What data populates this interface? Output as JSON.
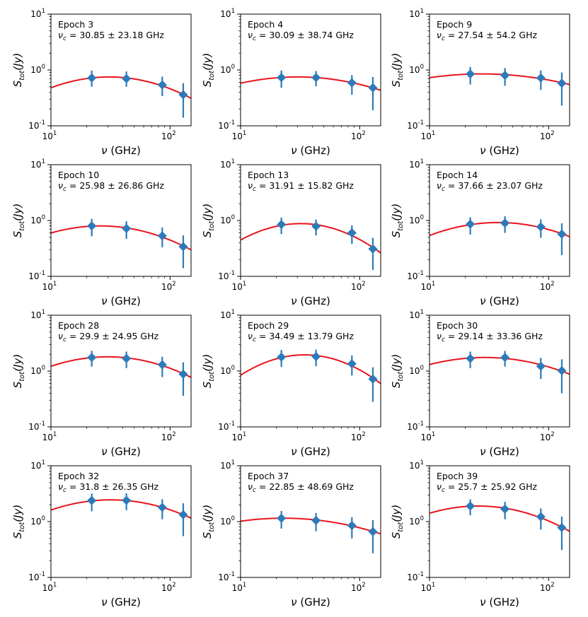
{
  "figure": {
    "xlabel_nu": "ν",
    "xlabel_unit": "(GHz)",
    "ylabel_S": "S",
    "ylabel_sub": "tot",
    "ylabel_unit": "(Jy)",
    "nu_symbol": "ν",
    "nu_sub": "c",
    "pm": "±",
    "unit": "GHz"
  },
  "styles": {
    "fit_color": "#e8141c",
    "point_color": "#2b7bba",
    "axis_color": "#000000"
  },
  "chart_data": [
    {
      "type": "scatter",
      "title": "Epoch 3",
      "nu_c": "30.85",
      "nu_c_err": "23.18",
      "x": [
        22,
        43,
        86,
        129
      ],
      "y": [
        0.72,
        0.7,
        0.54,
        0.36
      ],
      "yerr_low": [
        0.22,
        0.2,
        0.2,
        0.22
      ],
      "yerr_high": [
        0.26,
        0.24,
        0.22,
        0.22
      ],
      "peak": 0.75,
      "xlim": [
        10,
        150
      ],
      "ylim": [
        0.1,
        10
      ],
      "xscale": "log",
      "yscale": "log"
    },
    {
      "type": "scatter",
      "title": "Epoch 4",
      "nu_c": "30.09",
      "nu_c_err": "38.74",
      "x": [
        22,
        43,
        86,
        129
      ],
      "y": [
        0.73,
        0.73,
        0.59,
        0.48
      ],
      "yerr_low": [
        0.25,
        0.22,
        0.23,
        0.29
      ],
      "yerr_high": [
        0.25,
        0.23,
        0.22,
        0.27
      ],
      "peak": 0.75,
      "xlim": [
        10,
        150
      ],
      "ylim": [
        0.1,
        10
      ],
      "xscale": "log",
      "yscale": "log"
    },
    {
      "type": "scatter",
      "title": "Epoch 9",
      "nu_c": "27.54",
      "nu_c_err": "54.2",
      "x": [
        22,
        43,
        86,
        129
      ],
      "y": [
        0.85,
        0.8,
        0.72,
        0.58
      ],
      "yerr_low": [
        0.3,
        0.28,
        0.28,
        0.35
      ],
      "yerr_high": [
        0.28,
        0.28,
        0.26,
        0.32
      ],
      "peak": 0.85,
      "xlim": [
        10,
        150
      ],
      "ylim": [
        0.1,
        10
      ],
      "xscale": "log",
      "yscale": "log"
    },
    {
      "type": "scatter",
      "title": "Epoch 10",
      "nu_c": "25.98",
      "nu_c_err": "26.86",
      "x": [
        22,
        43,
        86,
        129
      ],
      "y": [
        0.8,
        0.72,
        0.53,
        0.34
      ],
      "yerr_low": [
        0.28,
        0.25,
        0.2,
        0.2
      ],
      "yerr_high": [
        0.27,
        0.25,
        0.22,
        0.2
      ],
      "peak": 0.8,
      "xlim": [
        10,
        150
      ],
      "ylim": [
        0.1,
        10
      ],
      "xscale": "log",
      "yscale": "log"
    },
    {
      "type": "scatter",
      "title": "Epoch 13",
      "nu_c": "31.91",
      "nu_c_err": "15.82",
      "x": [
        22,
        43,
        86,
        129
      ],
      "y": [
        0.85,
        0.79,
        0.6,
        0.31
      ],
      "yerr_low": [
        0.28,
        0.25,
        0.22,
        0.18
      ],
      "yerr_high": [
        0.28,
        0.25,
        0.22,
        0.18
      ],
      "peak": 0.88,
      "xlim": [
        10,
        150
      ],
      "ylim": [
        0.1,
        10
      ],
      "xscale": "log",
      "yscale": "log"
    },
    {
      "type": "scatter",
      "title": "Epoch 14",
      "nu_c": "37.66",
      "nu_c_err": "23.07",
      "x": [
        22,
        43,
        86,
        129
      ],
      "y": [
        0.86,
        0.9,
        0.77,
        0.57
      ],
      "yerr_low": [
        0.3,
        0.3,
        0.28,
        0.33
      ],
      "yerr_high": [
        0.28,
        0.29,
        0.28,
        0.32
      ],
      "peak": 0.92,
      "xlim": [
        10,
        150
      ],
      "ylim": [
        0.1,
        10
      ],
      "xscale": "log",
      "yscale": "log"
    },
    {
      "type": "scatter",
      "title": "Epoch 28",
      "nu_c": "29.9",
      "nu_c_err": "24.95",
      "x": [
        22,
        43,
        86,
        129
      ],
      "y": [
        1.75,
        1.68,
        1.3,
        0.88
      ],
      "yerr_low": [
        0.55,
        0.55,
        0.52,
        0.52
      ],
      "yerr_high": [
        0.55,
        0.55,
        0.5,
        0.55
      ],
      "peak": 1.8,
      "xlim": [
        10,
        150
      ],
      "ylim": [
        0.1,
        10
      ],
      "xscale": "log",
      "yscale": "log"
    },
    {
      "type": "scatter",
      "title": "Epoch 29",
      "nu_c": "34.49",
      "nu_c_err": "13.79",
      "x": [
        22,
        43,
        86,
        129
      ],
      "y": [
        1.78,
        1.82,
        1.35,
        0.72
      ],
      "yerr_low": [
        0.6,
        0.6,
        0.52,
        0.44
      ],
      "yerr_high": [
        0.6,
        0.6,
        0.55,
        0.45
      ],
      "peak": 1.95,
      "xlim": [
        10,
        150
      ],
      "ylim": [
        0.1,
        10
      ],
      "xscale": "log",
      "yscale": "log"
    },
    {
      "type": "scatter",
      "title": "Epoch 30",
      "nu_c": "29.14",
      "nu_c_err": "33.36",
      "x": [
        22,
        43,
        86,
        129
      ],
      "y": [
        1.68,
        1.75,
        1.22,
        1.02
      ],
      "yerr_low": [
        0.55,
        0.55,
        0.5,
        0.62
      ],
      "yerr_high": [
        0.55,
        0.55,
        0.5,
        0.6
      ],
      "peak": 1.75,
      "xlim": [
        10,
        150
      ],
      "ylim": [
        0.1,
        10
      ],
      "xscale": "log",
      "yscale": "log"
    },
    {
      "type": "scatter",
      "title": "Epoch 32",
      "nu_c": "31.8",
      "nu_c_err": "26.35",
      "x": [
        22,
        43,
        86,
        129
      ],
      "y": [
        2.38,
        2.4,
        1.8,
        1.33
      ],
      "yerr_low": [
        0.85,
        0.8,
        0.7,
        0.78
      ],
      "yerr_high": [
        0.8,
        0.8,
        0.7,
        0.8
      ],
      "peak": 2.45,
      "xlim": [
        10,
        150
      ],
      "ylim": [
        0.1,
        10
      ],
      "xscale": "log",
      "yscale": "log"
    },
    {
      "type": "scatter",
      "title": "Epoch 37",
      "nu_c": "22.85",
      "nu_c_err": "48.69",
      "x": [
        22,
        43,
        86,
        129
      ],
      "y": [
        1.15,
        1.05,
        0.85,
        0.66
      ],
      "yerr_low": [
        0.4,
        0.38,
        0.35,
        0.39
      ],
      "yerr_high": [
        0.4,
        0.38,
        0.35,
        0.4
      ],
      "peak": 1.15,
      "xlim": [
        10,
        150
      ],
      "ylim": [
        0.1,
        10
      ],
      "xscale": "log",
      "yscale": "log"
    },
    {
      "type": "scatter",
      "title": "Epoch 39",
      "nu_c": "25.7",
      "nu_c_err": "25.92",
      "x": [
        22,
        43,
        86,
        129
      ],
      "y": [
        1.9,
        1.68,
        1.22,
        0.78
      ],
      "yerr_low": [
        0.6,
        0.58,
        0.5,
        0.47
      ],
      "yerr_high": [
        0.6,
        0.58,
        0.5,
        0.45
      ],
      "peak": 1.9,
      "xlim": [
        10,
        150
      ],
      "ylim": [
        0.1,
        10
      ],
      "xscale": "log",
      "yscale": "log"
    }
  ]
}
